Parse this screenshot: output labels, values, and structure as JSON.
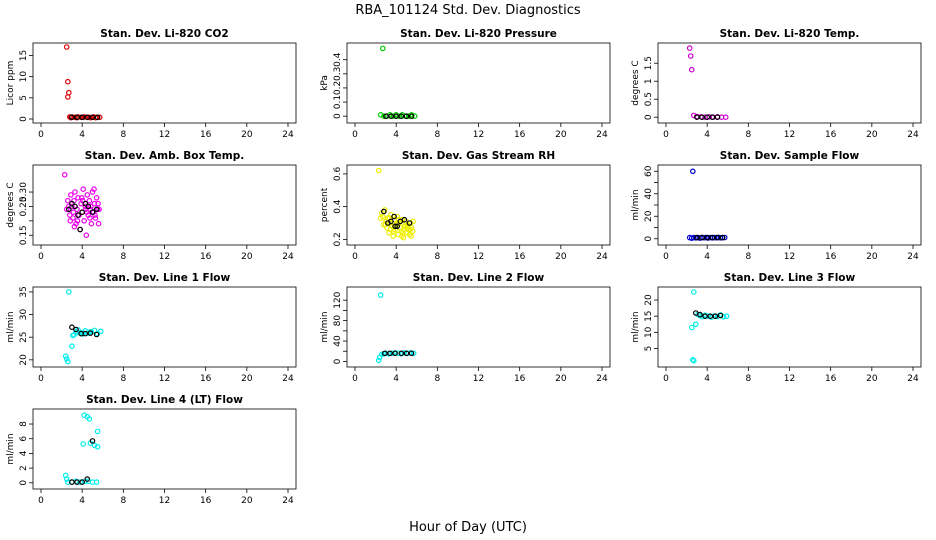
{
  "figure": {
    "title": "RBA_101124  Std. Dev. Diagnostics",
    "xlabel": "Hour of Day (UTC)"
  },
  "chart_data": [
    {
      "type": "scatter",
      "title": "Stan. Dev. Li-820 CO2",
      "ylabel": "Licor ppm",
      "xlim": [
        0,
        24
      ],
      "xticks": [
        0,
        4,
        8,
        12,
        16,
        20,
        24
      ],
      "ylim": [
        0,
        17
      ],
      "yticks": [
        0,
        5,
        10,
        15
      ],
      "series": [
        {
          "name": "samples",
          "color": "#dd0000",
          "x": [
            2.5,
            2.6,
            2.7,
            2.6,
            2.8,
            3.0,
            3.3,
            3.6,
            3.9,
            4.2,
            4.5,
            4.8,
            5.1,
            5.4,
            5.7,
            2.9,
            3.5,
            4.1,
            4.7,
            5.3
          ],
          "y": [
            17,
            8.8,
            6.2,
            5.2,
            0.5,
            0.5,
            0.4,
            0.5,
            0.4,
            0.5,
            0.4,
            0.3,
            0.5,
            0.4,
            0.4,
            0.3,
            0.3,
            0.4,
            0.4,
            0.3
          ]
        },
        {
          "name": "hourly",
          "color": "#000000",
          "x": [
            3.0,
            3.5,
            4.0,
            4.5,
            5.0,
            5.5
          ],
          "y": [
            0.4,
            0.4,
            0.4,
            0.4,
            0.4,
            0.4
          ]
        }
      ]
    },
    {
      "type": "scatter",
      "title": "Stan. Dev. Li-820 Pressure",
      "ylabel": "kPa",
      "xlim": [
        0,
        24
      ],
      "xticks": [
        0,
        4,
        8,
        12,
        16,
        20,
        24
      ],
      "ylim": [
        -0.02,
        0.49
      ],
      "yticks": [
        0.0,
        0.1,
        0.2,
        0.3,
        0.4
      ],
      "series": [
        {
          "name": "samples",
          "color": "#00cc00",
          "x": [
            2.7,
            2.5,
            2.8,
            3.1,
            3.4,
            3.7,
            4.0,
            4.3,
            4.6,
            4.9,
            5.2,
            5.5,
            5.8
          ],
          "y": [
            0.48,
            0.01,
            0.0,
            0.0,
            0.01,
            0.0,
            0.01,
            0.0,
            0.01,
            0.0,
            0.0,
            0.01,
            0.0
          ]
        },
        {
          "name": "hourly",
          "color": "#000000",
          "x": [
            3.0,
            3.5,
            4.0,
            4.5,
            5.0,
            5.5
          ],
          "y": [
            0.0,
            0.0,
            0.0,
            0.0,
            0.0,
            0.0
          ]
        }
      ]
    },
    {
      "type": "scatter",
      "title": "Stan. Dev. Li-820 Temp.",
      "ylabel": "degrees C",
      "xlim": [
        0,
        24
      ],
      "xticks": [
        0,
        4,
        8,
        12,
        16,
        20,
        24
      ],
      "ylim": [
        -0.05,
        1.95
      ],
      "yticks": [
        0.0,
        0.5,
        1.0,
        1.5
      ],
      "series": [
        {
          "name": "samples",
          "color": "#cc00cc",
          "x": [
            2.3,
            2.4,
            2.5,
            2.7,
            3.0,
            3.4,
            3.8,
            4.2,
            4.6,
            5.0,
            5.4,
            5.8
          ],
          "y": [
            1.92,
            1.7,
            1.32,
            0.05,
            0.02,
            0.01,
            0.0,
            0.01,
            0.0,
            0.01,
            0.0,
            0.0
          ]
        },
        {
          "name": "hourly",
          "color": "#000000",
          "x": [
            3.0,
            3.5,
            4.0,
            4.5,
            5.0
          ],
          "y": [
            0.0,
            0.0,
            0.0,
            0.0,
            0.0
          ]
        }
      ]
    },
    {
      "type": "scatter",
      "title": "Stan. Dev. Amb. Box Temp.",
      "ylabel": "degrees C",
      "xlim": [
        0,
        24
      ],
      "xticks": [
        0,
        4,
        8,
        12,
        16,
        20,
        24
      ],
      "ylim": [
        0.13,
        0.38
      ],
      "yticks": [
        0.15,
        0.2,
        0.25,
        0.3
      ],
      "ytick_labels": [
        "0.15",
        "",
        "0.25",
        ""
      ],
      "right_ticks": [
        "0.30"
      ],
      "series": [
        {
          "name": "samples",
          "color": "#ee00ee",
          "x": [
            2.3,
            2.5,
            2.6,
            2.8,
            2.9,
            3.0,
            3.1,
            3.2,
            3.3,
            3.4,
            3.5,
            3.6,
            3.7,
            3.8,
            3.9,
            4.0,
            4.1,
            4.2,
            4.3,
            4.4,
            4.5,
            4.6,
            4.7,
            4.8,
            4.9,
            5.0,
            5.1,
            5.2,
            5.3,
            5.4,
            5.5,
            5.6,
            2.7,
            3.15,
            3.55,
            3.95,
            4.35,
            4.75,
            5.15,
            5.55,
            2.85,
            3.25,
            3.65,
            4.05,
            4.45,
            4.85,
            5.25,
            5.65
          ],
          "y": [
            0.36,
            0.24,
            0.27,
            0.22,
            0.29,
            0.25,
            0.21,
            0.27,
            0.3,
            0.19,
            0.24,
            0.28,
            0.22,
            0.17,
            0.26,
            0.23,
            0.31,
            0.2,
            0.25,
            0.15,
            0.29,
            0.22,
            0.27,
            0.24,
            0.19,
            0.3,
            0.23,
            0.26,
            0.21,
            0.28,
            0.24,
            0.19,
            0.25,
            0.23,
            0.2,
            0.28,
            0.24,
            0.21,
            0.31,
            0.26,
            0.2,
            0.18,
            0.22,
            0.27,
            0.23,
            0.25,
            0.22,
            0.24
          ]
        },
        {
          "name": "hourly",
          "color": "#000000",
          "x": [
            2.7,
            3.0,
            3.3,
            3.6,
            4.0,
            4.3,
            4.6,
            5.0,
            5.4,
            3.8
          ],
          "y": [
            0.24,
            0.26,
            0.25,
            0.22,
            0.23,
            0.26,
            0.25,
            0.23,
            0.24,
            0.17
          ]
        }
      ]
    },
    {
      "type": "scatter",
      "title": "Stan. Dev. Gas Stream RH",
      "ylabel": "percent",
      "xlim": [
        0,
        24
      ],
      "xticks": [
        0,
        4,
        8,
        12,
        16,
        20,
        24
      ],
      "ylim": [
        0.19,
        0.63
      ],
      "yticks": [
        0.2,
        0.4,
        0.6
      ],
      "series": [
        {
          "name": "samples",
          "color": "#eeee00",
          "x": [
            2.3,
            2.5,
            2.6,
            2.8,
            2.9,
            3.0,
            3.1,
            3.2,
            3.3,
            3.4,
            3.5,
            3.6,
            3.7,
            3.8,
            3.9,
            4.0,
            4.1,
            4.2,
            4.3,
            4.4,
            4.5,
            4.6,
            4.7,
            4.8,
            4.9,
            5.0,
            5.1,
            5.2,
            5.3,
            5.4,
            5.5,
            5.6,
            2.7,
            3.05,
            3.45,
            3.85,
            4.25,
            4.65,
            5.05,
            5.45,
            2.95,
            3.35,
            3.75,
            4.15,
            4.55,
            4.95,
            5.35,
            5.65
          ],
          "y": [
            0.62,
            0.33,
            0.36,
            0.29,
            0.38,
            0.31,
            0.27,
            0.33,
            0.24,
            0.3,
            0.35,
            0.28,
            0.22,
            0.32,
            0.26,
            0.29,
            0.34,
            0.23,
            0.3,
            0.27,
            0.25,
            0.32,
            0.21,
            0.28,
            0.31,
            0.24,
            0.29,
            0.26,
            0.23,
            0.3,
            0.27,
            0.25,
            0.34,
            0.31,
            0.26,
            0.28,
            0.32,
            0.24,
            0.27,
            0.22,
            0.29,
            0.33,
            0.25,
            0.3,
            0.22,
            0.28,
            0.26,
            0.31
          ]
        },
        {
          "name": "hourly",
          "color": "#000000",
          "x": [
            2.8,
            3.2,
            3.5,
            3.8,
            4.1,
            4.4,
            4.8,
            5.3,
            3.9
          ],
          "y": [
            0.37,
            0.3,
            0.31,
            0.34,
            0.28,
            0.31,
            0.32,
            0.3,
            0.28
          ]
        }
      ]
    },
    {
      "type": "scatter",
      "title": "Stan. Dev. Sample Flow",
      "ylabel": "ml/min",
      "xlim": [
        0,
        24
      ],
      "xticks": [
        0,
        4,
        8,
        12,
        16,
        20,
        24
      ],
      "ylim": [
        -2,
        62
      ],
      "yticks": [
        0,
        10,
        20,
        30,
        40,
        50,
        60
      ],
      "ytick_labels": [
        "0",
        "",
        "20",
        "",
        "40",
        "",
        "60"
      ],
      "series": [
        {
          "name": "samples",
          "color": "#0000cc",
          "x": [
            2.6,
            2.3,
            2.5,
            2.7,
            2.9,
            3.1,
            3.3,
            3.5,
            3.7,
            3.9,
            4.1,
            4.3,
            4.5,
            4.7,
            4.9,
            5.1,
            5.3,
            5.5,
            5.7
          ],
          "y": [
            60,
            1,
            0.5,
            1,
            0.8,
            1,
            0.6,
            1.2,
            0.9,
            1,
            0.7,
            1.1,
            0.8,
            1,
            0.9,
            1.2,
            0.8,
            1,
            1.1
          ]
        },
        {
          "name": "hourly",
          "color": "#000000",
          "x": [
            3.0,
            3.5,
            4.0,
            4.5,
            5.0,
            5.5
          ],
          "y": [
            1,
            1,
            1,
            1,
            1,
            1
          ]
        }
      ]
    },
    {
      "type": "scatter",
      "title": "Stan. Dev. Line 1 Flow",
      "ylabel": "ml/min",
      "xlim": [
        0,
        24
      ],
      "xticks": [
        0,
        4,
        8,
        12,
        16,
        20,
        24
      ],
      "ylim": [
        19.3,
        35.2
      ],
      "yticks": [
        20,
        25,
        30,
        35
      ],
      "series": [
        {
          "name": "samples",
          "color": "#00eeee",
          "x": [
            2.7,
            2.4,
            2.5,
            2.6,
            3.0,
            3.2,
            3.4,
            3.6,
            3.8,
            4.0,
            4.3,
            4.6,
            4.9,
            5.2,
            5.5,
            5.8,
            3.1,
            3.5,
            4.1,
            4.7
          ],
          "y": [
            35,
            20.8,
            20.2,
            19.6,
            23,
            25.5,
            26.2,
            26.6,
            26,
            25.7,
            26.4,
            25.9,
            26.2,
            26.5,
            25.8,
            26.3,
            25.4,
            26.0,
            25.9,
            26.1
          ]
        },
        {
          "name": "hourly",
          "color": "#000000",
          "x": [
            3.0,
            3.4,
            3.9,
            4.3,
            4.8,
            5.4
          ],
          "y": [
            27.2,
            26.7,
            25.8,
            25.8,
            25.9,
            25.6
          ]
        }
      ]
    },
    {
      "type": "scatter",
      "title": "Stan. Dev. Line 2 Flow",
      "ylabel": "ml/min",
      "xlim": [
        0,
        24
      ],
      "xticks": [
        0,
        4,
        8,
        12,
        16,
        20,
        24
      ],
      "ylim": [
        -3,
        138
      ],
      "yticks": [
        0,
        20,
        40,
        60,
        80,
        100,
        120
      ],
      "ytick_labels": [
        "0",
        "",
        "40",
        "",
        "80",
        "",
        "120"
      ],
      "series": [
        {
          "name": "samples",
          "color": "#00eeee",
          "x": [
            2.5,
            2.3,
            2.4,
            2.6,
            2.8,
            3.0,
            3.3,
            3.6,
            3.9,
            4.2,
            4.5,
            4.8,
            5.1,
            5.4,
            5.7
          ],
          "y": [
            130,
            2,
            8,
            14,
            15,
            16,
            15,
            16,
            17,
            16,
            15,
            17,
            16,
            17,
            16
          ]
        },
        {
          "name": "hourly",
          "color": "#000000",
          "x": [
            2.9,
            3.4,
            3.9,
            4.5,
            5.0,
            5.5
          ],
          "y": [
            16,
            16,
            16,
            16,
            16,
            16
          ]
        }
      ]
    },
    {
      "type": "scatter",
      "title": "Stan. Dev. Line 3 Flow",
      "ylabel": "ml/min",
      "xlim": [
        0,
        24
      ],
      "xticks": [
        0,
        4,
        8,
        12,
        16,
        20,
        24
      ],
      "ylim": [
        0.5,
        22.8
      ],
      "yticks": [
        5,
        10,
        15,
        20
      ],
      "series": [
        {
          "name": "samples",
          "color": "#00eeee",
          "x": [
            2.7,
            2.5,
            2.6,
            2.7,
            2.9,
            3.1,
            3.3,
            3.5,
            3.8,
            4.1,
            4.4,
            4.7,
            5.0,
            5.3,
            5.6,
            5.9
          ],
          "y": [
            22.5,
            11.5,
            1.5,
            1.2,
            12.5,
            15.5,
            15.2,
            14.8,
            15.3,
            15.0,
            14.7,
            15.1,
            14.9,
            15.4,
            14.8,
            15.0
          ]
        },
        {
          "name": "hourly",
          "color": "#000000",
          "x": [
            2.9,
            3.3,
            3.8,
            4.3,
            4.8,
            5.3
          ],
          "y": [
            16.0,
            15.5,
            15.0,
            15.0,
            15.0,
            15.2
          ]
        }
      ]
    },
    {
      "type": "scatter",
      "title": "Stan. Dev. Line 4 (LT) Flow",
      "ylabel": "ml/min",
      "xlim": [
        0,
        24
      ],
      "xticks": [
        0,
        4,
        8,
        12,
        16,
        20,
        24
      ],
      "ylim": [
        -0.3,
        9.5
      ],
      "yticks": [
        0,
        2,
        4,
        6,
        8
      ],
      "series": [
        {
          "name": "samples",
          "color": "#00eeee",
          "x": [
            2.4,
            2.5,
            2.6,
            3.0,
            3.4,
            3.8,
            4.2,
            4.5,
            4.7,
            4.8,
            5.2,
            5.5,
            5.5,
            4.1,
            4.3,
            4.6,
            5.0,
            5.4
          ],
          "y": [
            1.0,
            0.5,
            0.1,
            0.1,
            0.2,
            0.1,
            9.2,
            9.0,
            8.7,
            5.4,
            5.1,
            7.0,
            4.9,
            5.3,
            0.2,
            0.2,
            0.1,
            0.1
          ]
        },
        {
          "name": "hourly",
          "color": "#000000",
          "x": [
            3.0,
            3.5,
            4.0,
            4.5,
            5.0
          ],
          "y": [
            0.1,
            0.1,
            0.1,
            0.5,
            5.7
          ]
        }
      ]
    }
  ]
}
